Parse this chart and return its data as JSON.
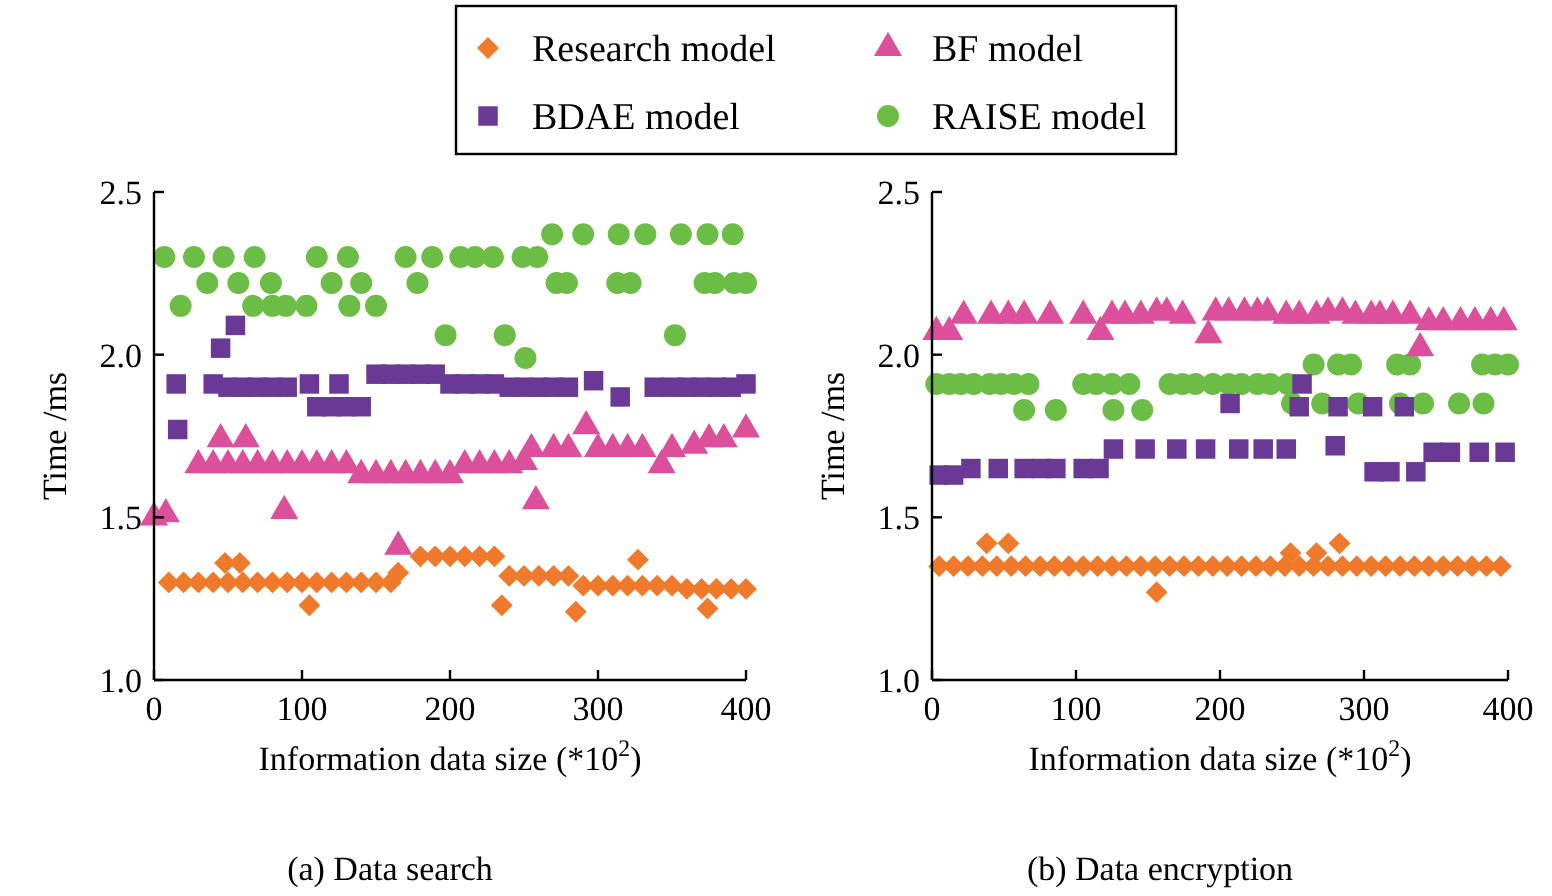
{
  "chart_data": [
    {
      "type": "scatter",
      "title": "(a) Data search",
      "xlabel": "Information data size (*10$^{2}$)",
      "ylabel": "Time /ms",
      "xlim": [
        0,
        400
      ],
      "xticks": [
        0,
        100,
        200,
        300,
        400
      ],
      "ylim": [
        1,
        2.5
      ],
      "yticks": [
        {
          "value": 1,
          "label": "1.0"
        },
        {
          "value": 1.5,
          "label": "1.5"
        },
        {
          "value": 2,
          "label": "2.0"
        },
        {
          "value": 2.5,
          "label": "2.5"
        }
      ],
      "legend": "top",
      "series": [
        {
          "name": "Research model",
          "color": "#ef7a2c",
          "marker": "diamond",
          "x": [
            10,
            20,
            30,
            40,
            48,
            50,
            58,
            60,
            70,
            80,
            90,
            100,
            105,
            110,
            120,
            130,
            140,
            150,
            160,
            165,
            180,
            190,
            200,
            210,
            220,
            230,
            235,
            240,
            250,
            260,
            270,
            280,
            285,
            290,
            300,
            310,
            320,
            327,
            330,
            340,
            350,
            360,
            370,
            374,
            380,
            390,
            400
          ],
          "values": [
            1.3,
            1.3,
            1.3,
            1.3,
            1.36,
            1.3,
            1.36,
            1.3,
            1.3,
            1.3,
            1.3,
            1.3,
            1.23,
            1.3,
            1.3,
            1.3,
            1.3,
            1.3,
            1.3,
            1.33,
            1.38,
            1.38,
            1.38,
            1.38,
            1.38,
            1.38,
            1.23,
            1.32,
            1.32,
            1.32,
            1.32,
            1.32,
            1.21,
            1.29,
            1.29,
            1.29,
            1.29,
            1.37,
            1.29,
            1.29,
            1.29,
            1.28,
            1.28,
            1.22,
            1.28,
            1.28,
            1.28
          ]
        },
        {
          "name": "BF model",
          "color": "#dc4f9b",
          "marker": "triangle",
          "x": [
            0,
            8,
            30,
            40,
            45,
            50,
            60,
            62,
            70,
            80,
            88,
            90,
            100,
            110,
            120,
            130,
            140,
            150,
            160,
            165,
            170,
            180,
            190,
            200,
            210,
            220,
            230,
            240,
            250,
            255,
            258,
            270,
            280,
            292,
            300,
            310,
            320,
            330,
            343,
            350,
            365,
            375,
            385,
            400
          ],
          "values": [
            1.5,
            1.51,
            1.66,
            1.66,
            1.74,
            1.66,
            1.66,
            1.74,
            1.66,
            1.66,
            1.52,
            1.66,
            1.66,
            1.66,
            1.66,
            1.66,
            1.63,
            1.63,
            1.63,
            1.41,
            1.63,
            1.63,
            1.63,
            1.63,
            1.66,
            1.66,
            1.66,
            1.66,
            1.67,
            1.71,
            1.55,
            1.71,
            1.71,
            1.78,
            1.71,
            1.71,
            1.71,
            1.71,
            1.66,
            1.71,
            1.72,
            1.74,
            1.74,
            1.77
          ]
        },
        {
          "name": "BDAE model",
          "color": "#6a3996",
          "marker": "square",
          "x": [
            15,
            16,
            40,
            45,
            50,
            55,
            60,
            70,
            80,
            90,
            105,
            110,
            120,
            125,
            130,
            140,
            150,
            160,
            170,
            180,
            190,
            200,
            210,
            220,
            230,
            240,
            250,
            260,
            270,
            280,
            297,
            315,
            338,
            350,
            360,
            370,
            380,
            390,
            400
          ],
          "values": [
            1.91,
            1.77,
            1.91,
            2.02,
            1.9,
            2.09,
            1.9,
            1.9,
            1.9,
            1.9,
            1.91,
            1.84,
            1.84,
            1.91,
            1.84,
            1.84,
            1.94,
            1.94,
            1.94,
            1.94,
            1.94,
            1.91,
            1.91,
            1.91,
            1.91,
            1.9,
            1.9,
            1.9,
            1.9,
            1.9,
            1.92,
            1.87,
            1.9,
            1.9,
            1.9,
            1.9,
            1.9,
            1.9,
            1.91
          ]
        },
        {
          "name": "RAISE model",
          "color": "#6cbd45",
          "marker": "circle",
          "x": [
            7,
            18,
            27,
            36,
            47,
            57,
            67,
            68,
            79,
            80,
            89,
            103,
            110,
            120,
            131,
            132,
            140,
            150,
            170,
            178,
            188,
            197,
            207,
            217,
            229,
            237,
            249,
            251,
            259,
            269,
            272,
            279,
            290,
            313,
            314,
            322,
            332,
            352,
            356,
            372,
            374,
            379,
            391,
            392,
            400
          ],
          "values": [
            2.3,
            2.15,
            2.3,
            2.22,
            2.3,
            2.22,
            2.15,
            2.3,
            2.22,
            2.15,
            2.15,
            2.15,
            2.3,
            2.22,
            2.3,
            2.15,
            2.22,
            2.15,
            2.3,
            2.22,
            2.3,
            2.06,
            2.3,
            2.3,
            2.3,
            2.06,
            2.3,
            1.99,
            2.3,
            2.37,
            2.22,
            2.22,
            2.37,
            2.22,
            2.37,
            2.22,
            2.37,
            2.06,
            2.37,
            2.22,
            2.37,
            2.22,
            2.37,
            2.22,
            2.22
          ]
        }
      ]
    },
    {
      "type": "scatter",
      "title": "(b) Data encryption",
      "xlabel": "Information data size (*10$^{2}$)",
      "ylabel": "Time /ms",
      "xlim": [
        0,
        400
      ],
      "xticks": [
        0,
        100,
        200,
        300,
        400
      ],
      "ylim": [
        1,
        2.5
      ],
      "yticks": [
        {
          "value": 1,
          "label": "1.0"
        },
        {
          "value": 1.5,
          "label": "1.5"
        },
        {
          "value": 2,
          "label": "2.0"
        },
        {
          "value": 2.5,
          "label": "2.5"
        }
      ],
      "series": [
        {
          "color": "#ef7a2c",
          "marker": "diamond",
          "x": [
            5,
            15,
            25,
            35,
            38,
            45,
            53,
            55,
            65,
            75,
            85,
            95,
            105,
            115,
            125,
            135,
            145,
            155,
            156,
            165,
            175,
            185,
            195,
            205,
            215,
            225,
            235,
            245,
            249,
            255,
            265,
            267,
            275,
            283,
            285,
            295,
            305,
            315,
            325,
            335,
            345,
            355,
            365,
            375,
            385,
            395
          ],
          "values": [
            1.35,
            1.35,
            1.35,
            1.35,
            1.42,
            1.35,
            1.42,
            1.35,
            1.35,
            1.35,
            1.35,
            1.35,
            1.35,
            1.35,
            1.35,
            1.35,
            1.35,
            1.35,
            1.27,
            1.35,
            1.35,
            1.35,
            1.35,
            1.35,
            1.35,
            1.35,
            1.35,
            1.35,
            1.39,
            1.35,
            1.35,
            1.39,
            1.35,
            1.42,
            1.35,
            1.35,
            1.35,
            1.35,
            1.35,
            1.35,
            1.35,
            1.35,
            1.35,
            1.35,
            1.35,
            1.35
          ]
        },
        {
          "color": "#dc4f9b",
          "marker": "triangle",
          "x": [
            3,
            12,
            22,
            41,
            53,
            64,
            82,
            105,
            117,
            125,
            134,
            145,
            156,
            163,
            174,
            192,
            197,
            206,
            217,
            226,
            233,
            246,
            255,
            267,
            275,
            285,
            294,
            305,
            311,
            320,
            332,
            339,
            345,
            355,
            367,
            377,
            388,
            397
          ],
          "values": [
            2.07,
            2.07,
            2.12,
            2.12,
            2.12,
            2.12,
            2.12,
            2.12,
            2.07,
            2.12,
            2.12,
            2.12,
            2.13,
            2.13,
            2.12,
            2.06,
            2.13,
            2.13,
            2.13,
            2.13,
            2.13,
            2.12,
            2.12,
            2.12,
            2.13,
            2.13,
            2.12,
            2.12,
            2.12,
            2.12,
            2.12,
            2.02,
            2.1,
            2.1,
            2.1,
            2.1,
            2.1,
            2.1
          ]
        },
        {
          "color": "#6a3996",
          "marker": "square",
          "x": [
            5,
            15,
            27,
            46,
            64,
            76,
            86,
            105,
            116,
            126,
            148,
            170,
            190,
            207,
            213,
            230,
            246,
            255,
            257,
            280,
            282,
            306,
            307,
            318,
            328,
            336,
            348,
            360,
            380,
            398
          ],
          "values": [
            1.63,
            1.63,
            1.65,
            1.65,
            1.65,
            1.65,
            1.65,
            1.65,
            1.65,
            1.71,
            1.71,
            1.71,
            1.71,
            1.85,
            1.71,
            1.71,
            1.71,
            1.84,
            1.91,
            1.72,
            1.84,
            1.84,
            1.64,
            1.64,
            1.84,
            1.64,
            1.7,
            1.7,
            1.7,
            1.7
          ]
        },
        {
          "color": "#6cbd45",
          "marker": "circle",
          "x": [
            3,
            12,
            20,
            29,
            40,
            48,
            57,
            64,
            67,
            86,
            105,
            114,
            125,
            126,
            137,
            146,
            165,
            174,
            183,
            195,
            206,
            215,
            226,
            235,
            247,
            250,
            265,
            271,
            282,
            291,
            296,
            323,
            325,
            332,
            341,
            366,
            382,
            383,
            391,
            400
          ],
          "values": [
            1.91,
            1.91,
            1.91,
            1.91,
            1.91,
            1.91,
            1.91,
            1.83,
            1.91,
            1.83,
            1.91,
            1.91,
            1.91,
            1.83,
            1.91,
            1.83,
            1.91,
            1.91,
            1.91,
            1.91,
            1.91,
            1.91,
            1.91,
            1.91,
            1.91,
            1.85,
            1.97,
            1.85,
            1.97,
            1.97,
            1.85,
            1.97,
            1.85,
            1.97,
            1.85,
            1.85,
            1.97,
            1.85,
            1.97,
            1.97
          ]
        }
      ]
    }
  ]
}
